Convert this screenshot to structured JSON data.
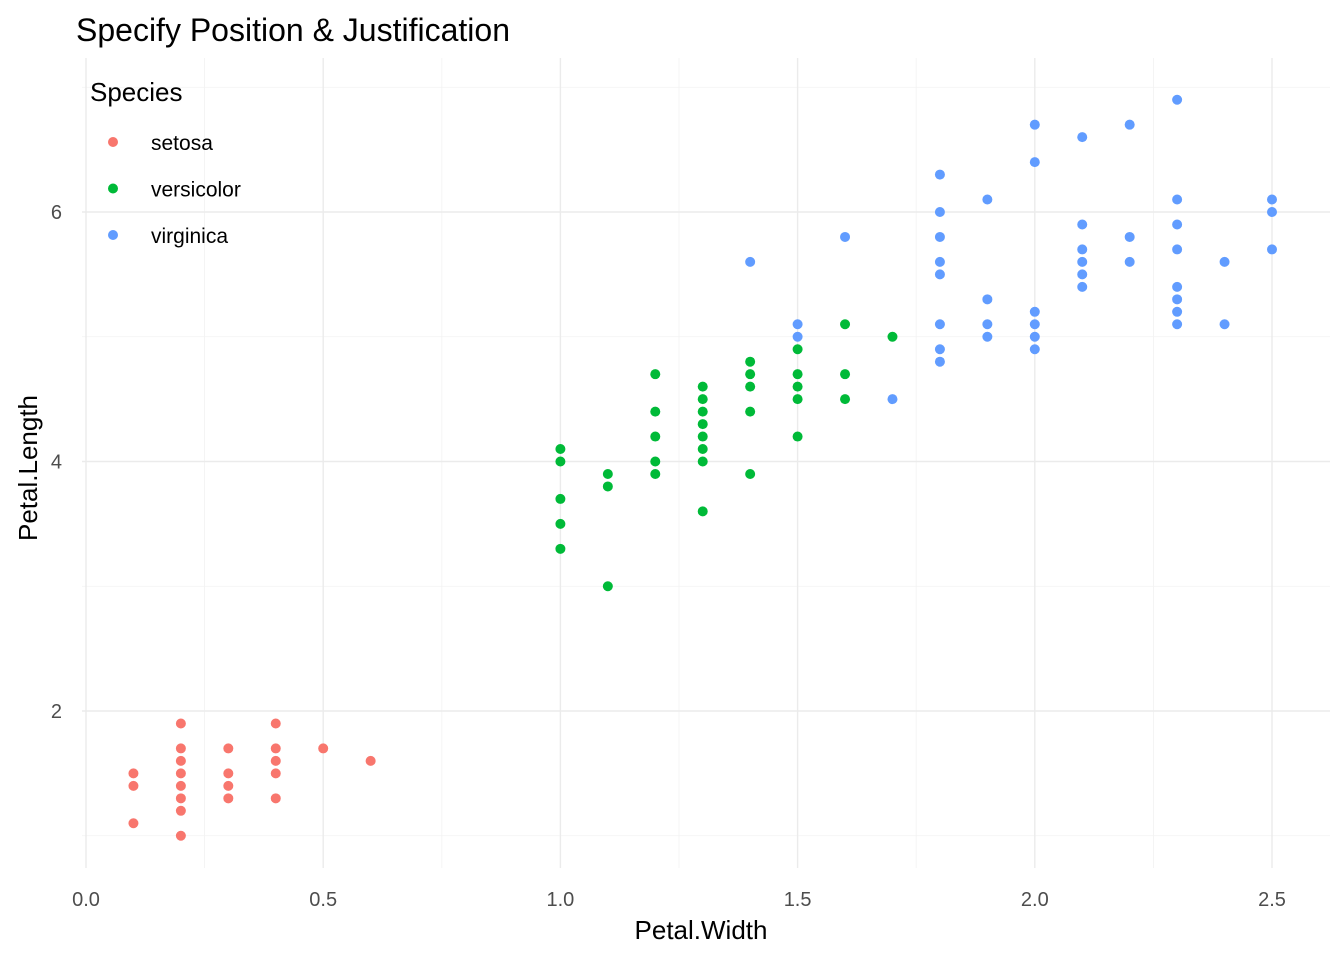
{
  "chart_data": {
    "type": "scatter",
    "title": "Specify Position & Justification",
    "xlabel": "Petal.Width",
    "ylabel": "Petal.Length",
    "xlim": [
      -0.02,
      2.62
    ],
    "ylim": [
      0.7,
      7.0
    ],
    "x_ticks": [
      0.0,
      0.5,
      1.0,
      1.5,
      2.0,
      2.5
    ],
    "x_tick_labels": [
      "0.0",
      "0.5",
      "1.0",
      "1.5",
      "2.0",
      "2.5"
    ],
    "y_ticks": [
      2,
      4,
      6
    ],
    "y_tick_labels": [
      "2",
      "4",
      "6"
    ],
    "grid": true,
    "legend": {
      "title": "Species",
      "placement": "top-left"
    },
    "series": [
      {
        "name": "setosa",
        "color": "#F8766D",
        "points": [
          [
            0.1,
            1.1
          ],
          [
            0.1,
            1.4
          ],
          [
            0.1,
            1.5
          ],
          [
            0.2,
            1.0
          ],
          [
            0.2,
            1.2
          ],
          [
            0.2,
            1.3
          ],
          [
            0.2,
            1.4
          ],
          [
            0.2,
            1.5
          ],
          [
            0.2,
            1.6
          ],
          [
            0.2,
            1.7
          ],
          [
            0.2,
            1.9
          ],
          [
            0.3,
            1.3
          ],
          [
            0.3,
            1.4
          ],
          [
            0.3,
            1.5
          ],
          [
            0.3,
            1.7
          ],
          [
            0.4,
            1.3
          ],
          [
            0.4,
            1.5
          ],
          [
            0.4,
            1.6
          ],
          [
            0.4,
            1.7
          ],
          [
            0.4,
            1.9
          ],
          [
            0.5,
            1.7
          ],
          [
            0.6,
            1.6
          ]
        ]
      },
      {
        "name": "versicolor",
        "color": "#00BA38",
        "points": [
          [
            1.0,
            3.3
          ],
          [
            1.0,
            3.5
          ],
          [
            1.0,
            3.7
          ],
          [
            1.0,
            4.0
          ],
          [
            1.0,
            4.1
          ],
          [
            1.1,
            3.0
          ],
          [
            1.1,
            3.8
          ],
          [
            1.1,
            3.9
          ],
          [
            1.2,
            3.9
          ],
          [
            1.2,
            4.0
          ],
          [
            1.2,
            4.2
          ],
          [
            1.2,
            4.4
          ],
          [
            1.2,
            4.7
          ],
          [
            1.3,
            3.6
          ],
          [
            1.3,
            4.0
          ],
          [
            1.3,
            4.1
          ],
          [
            1.3,
            4.2
          ],
          [
            1.3,
            4.3
          ],
          [
            1.3,
            4.4
          ],
          [
            1.3,
            4.5
          ],
          [
            1.3,
            4.6
          ],
          [
            1.4,
            3.9
          ],
          [
            1.4,
            4.4
          ],
          [
            1.4,
            4.6
          ],
          [
            1.4,
            4.7
          ],
          [
            1.4,
            4.8
          ],
          [
            1.5,
            4.2
          ],
          [
            1.5,
            4.5
          ],
          [
            1.5,
            4.6
          ],
          [
            1.5,
            4.7
          ],
          [
            1.5,
            4.9
          ],
          [
            1.6,
            4.5
          ],
          [
            1.6,
            4.7
          ],
          [
            1.6,
            5.1
          ],
          [
            1.7,
            5.0
          ]
        ]
      },
      {
        "name": "virginica",
        "color": "#619CFF",
        "points": [
          [
            1.4,
            5.6
          ],
          [
            1.5,
            5.0
          ],
          [
            1.5,
            5.1
          ],
          [
            1.6,
            5.8
          ],
          [
            1.7,
            4.5
          ],
          [
            1.8,
            4.8
          ],
          [
            1.8,
            4.9
          ],
          [
            1.8,
            5.1
          ],
          [
            1.8,
            5.5
          ],
          [
            1.8,
            5.6
          ],
          [
            1.8,
            5.8
          ],
          [
            1.8,
            6.0
          ],
          [
            1.8,
            6.3
          ],
          [
            1.9,
            5.0
          ],
          [
            1.9,
            5.1
          ],
          [
            1.9,
            5.3
          ],
          [
            1.9,
            6.1
          ],
          [
            2.0,
            4.9
          ],
          [
            2.0,
            5.0
          ],
          [
            2.0,
            5.1
          ],
          [
            2.0,
            5.2
          ],
          [
            2.0,
            6.4
          ],
          [
            2.0,
            6.7
          ],
          [
            2.1,
            5.4
          ],
          [
            2.1,
            5.5
          ],
          [
            2.1,
            5.6
          ],
          [
            2.1,
            5.7
          ],
          [
            2.1,
            5.9
          ],
          [
            2.1,
            6.6
          ],
          [
            2.2,
            5.6
          ],
          [
            2.2,
            5.8
          ],
          [
            2.2,
            6.7
          ],
          [
            2.3,
            5.1
          ],
          [
            2.3,
            5.2
          ],
          [
            2.3,
            5.3
          ],
          [
            2.3,
            5.4
          ],
          [
            2.3,
            5.7
          ],
          [
            2.3,
            5.9
          ],
          [
            2.3,
            6.1
          ],
          [
            2.3,
            6.9
          ],
          [
            2.4,
            5.1
          ],
          [
            2.4,
            5.6
          ],
          [
            2.5,
            5.7
          ],
          [
            2.5,
            6.0
          ],
          [
            2.5,
            6.1
          ]
        ]
      }
    ]
  }
}
